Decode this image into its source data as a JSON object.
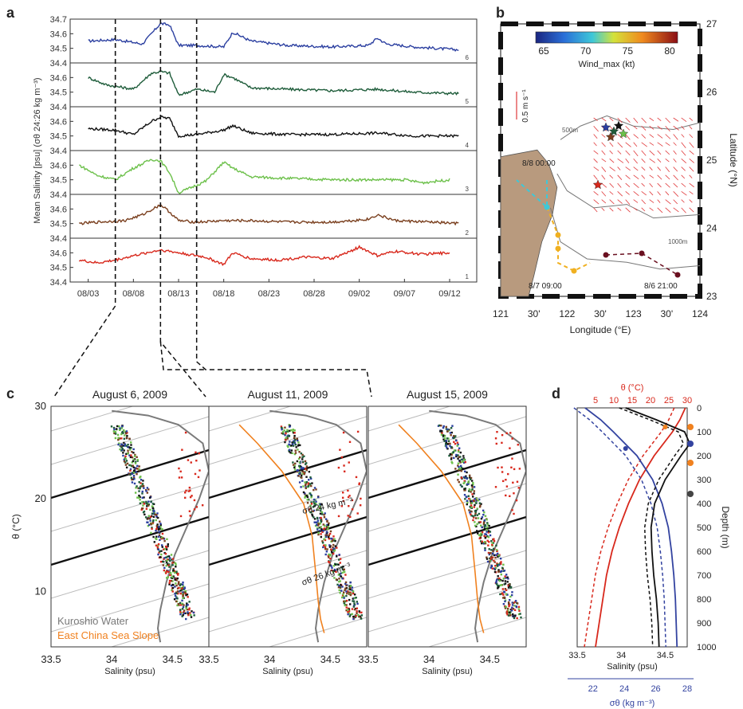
{
  "panel_letters": {
    "a": "a",
    "b": "b",
    "c": "c",
    "d": "d"
  },
  "chart_data": [
    {
      "panel": "a",
      "type": "line",
      "ylabel": "Mean Salinity [psu] (σθ 24:26 kg m⁻³)",
      "ylim": [
        34.4,
        34.7
      ],
      "y_ticks": [
        "34.4",
        "34.5",
        "34.6",
        "34.7"
      ],
      "x_ticks": [
        "08/03",
        "08/08",
        "08/13",
        "08/18",
        "08/23",
        "08/28",
        "09/02",
        "09/07",
        "09/12"
      ],
      "date_range": [
        "2009-08-01",
        "2009-09-15"
      ],
      "marked_dates": [
        "2009-08-06",
        "2009-08-11",
        "2009-08-15"
      ],
      "series": [
        {
          "name": "6",
          "color": "#2b3fa0",
          "x": [
            "08/03",
            "08/06",
            "08/09",
            "08/10",
            "08/11",
            "08/12",
            "08/13",
            "08/15",
            "08/18",
            "08/19",
            "08/21",
            "08/25",
            "08/30",
            "09/03",
            "09/04",
            "09/05",
            "09/08",
            "09/13"
          ],
          "values": [
            34.55,
            34.56,
            34.53,
            34.6,
            34.67,
            34.66,
            34.52,
            34.52,
            34.51,
            34.61,
            34.55,
            34.52,
            34.51,
            34.52,
            34.57,
            34.53,
            34.51,
            34.49
          ]
        },
        {
          "name": "5",
          "color": "#1e5c3a",
          "x": [
            "08/03",
            "08/05",
            "08/08",
            "08/10",
            "08/11",
            "08/12",
            "08/13",
            "08/15",
            "08/17",
            "08/18",
            "08/19",
            "08/21",
            "08/25",
            "08/30",
            "09/04",
            "09/08",
            "09/13"
          ],
          "values": [
            34.6,
            34.55,
            34.52,
            34.63,
            34.64,
            34.63,
            34.48,
            34.52,
            34.5,
            34.62,
            34.6,
            34.53,
            34.52,
            34.51,
            34.52,
            34.5,
            34.49
          ]
        },
        {
          "name": "4",
          "color": "#111111",
          "x": [
            "08/03",
            "08/06",
            "08/08",
            "08/10",
            "08/11",
            "08/12",
            "08/13",
            "08/15",
            "08/18",
            "08/19",
            "08/21",
            "08/25",
            "08/30",
            "09/04",
            "09/08",
            "09/13"
          ],
          "values": [
            34.55,
            34.54,
            34.51,
            34.6,
            34.63,
            34.62,
            34.5,
            34.51,
            34.54,
            34.57,
            34.52,
            34.51,
            34.51,
            34.52,
            34.5,
            34.5
          ]
        },
        {
          "name": "3",
          "color": "#6cc04a",
          "x": [
            "08/02",
            "08/04",
            "08/06",
            "08/08",
            "08/10",
            "08/11",
            "08/12",
            "08/13",
            "08/16",
            "08/18",
            "08/19",
            "08/21",
            "08/25",
            "08/30",
            "09/04",
            "09/07",
            "09/09",
            "09/12"
          ],
          "values": [
            34.6,
            34.53,
            34.5,
            34.58,
            34.64,
            34.63,
            34.55,
            34.41,
            34.49,
            34.62,
            34.58,
            34.52,
            34.51,
            34.5,
            34.5,
            34.5,
            34.48,
            34.5
          ]
        },
        {
          "name": "2",
          "color": "#7a3f1e",
          "x": [
            "08/02",
            "08/04",
            "08/07",
            "08/09",
            "08/11",
            "08/12",
            "08/13",
            "08/15",
            "08/18",
            "08/21",
            "08/25",
            "08/30",
            "09/03",
            "09/04",
            "09/06",
            "09/10",
            "09/13"
          ],
          "values": [
            34.5,
            34.51,
            34.52,
            34.56,
            34.63,
            34.58,
            34.52,
            34.51,
            34.52,
            34.52,
            34.51,
            34.51,
            34.53,
            34.56,
            34.52,
            34.51,
            34.5
          ]
        },
        {
          "name": "1",
          "color": "#d8281c",
          "x": [
            "08/02",
            "08/04",
            "08/06",
            "08/08",
            "08/11",
            "08/13",
            "08/16",
            "08/18",
            "08/19",
            "08/21",
            "08/24",
            "08/27",
            "08/30",
            "09/01",
            "09/02",
            "09/04",
            "09/06",
            "09/09",
            "09/12"
          ],
          "values": [
            34.55,
            34.53,
            34.55,
            34.58,
            34.62,
            34.6,
            34.57,
            34.52,
            34.6,
            34.56,
            34.55,
            34.57,
            34.56,
            34.61,
            34.64,
            34.58,
            34.61,
            34.59,
            34.6
          ]
        }
      ]
    },
    {
      "panel": "b",
      "type": "map",
      "xlabel": "Longitude (°E)",
      "ylabel": "Latitude (°N)",
      "x_ticks": [
        "121",
        "30'",
        "122",
        "30'",
        "123",
        "30'",
        "124"
      ],
      "y_ticks": [
        "23",
        "24",
        "25",
        "26",
        "27"
      ],
      "colorbar": {
        "label": "Wind_max (kt)",
        "ticks": [
          "65",
          "70",
          "75",
          "80"
        ]
      },
      "scale_label": "0.5 m s⁻¹",
      "isobath_labels": [
        "500m",
        "1000m"
      ],
      "track_labels": [
        "8/8 00:00",
        "8/7 09:00",
        "8/6 21:00"
      ]
    },
    {
      "panel": "c",
      "type": "scatter",
      "titles": [
        "August 6, 2009",
        "August 11, 2009",
        "August 15, 2009"
      ],
      "ylabel": "θ (°C)",
      "xlabel": "Salinity (psu)",
      "xlim": [
        33.5,
        34.8
      ],
      "ylim": [
        4,
        30
      ],
      "x_ticks": [
        "33.5",
        "34",
        "34.5"
      ],
      "y_ticks": [
        "10",
        "20",
        "30"
      ],
      "isopycnal_labels": [
        "σθ 24 kg m⁻³",
        "σθ 26 kg m⁻³"
      ],
      "legend": [
        "Kuroshio Water",
        "East China Sea Slope"
      ],
      "legend_colors": [
        "#7a7a7a",
        "#f0811f"
      ],
      "kuroshio_profile": {
        "salinity": [
          34.0,
          34.3,
          34.55,
          34.75,
          34.8,
          34.72,
          34.62,
          34.52,
          34.45,
          34.4,
          34.38,
          34.4
        ],
        "theta": [
          29.5,
          29.0,
          28.0,
          26.0,
          23.0,
          20.0,
          17.0,
          14.0,
          11.0,
          8.0,
          6.0,
          4.5
        ]
      },
      "ecs_profile": {
        "salinity": [
          33.75,
          33.9,
          34.1,
          34.28,
          34.35,
          34.38,
          34.4,
          34.42,
          34.45
        ],
        "theta": [
          28.0,
          26.0,
          23.0,
          19.5,
          16.0,
          12.0,
          9.0,
          7.0,
          5.5
        ]
      }
    },
    {
      "panel": "d",
      "type": "line",
      "ylabel": "Depth (m)",
      "xlabel": "Salinity (psu)",
      "top_axis_label": "θ (°C)",
      "bottom2_axis_label": "σθ (kg m⁻³)",
      "ylim": [
        1000,
        0
      ],
      "y_ticks": [
        "0",
        "100",
        "200",
        "300",
        "400",
        "500",
        "600",
        "700",
        "800",
        "900",
        "1000"
      ],
      "salinity_ticks": [
        "33.5",
        "34",
        "34.5"
      ],
      "theta_ticks": [
        "5",
        "10",
        "15",
        "20",
        "25",
        "30"
      ],
      "sigma_ticks": [
        "22",
        "24",
        "26",
        "28"
      ],
      "series": [
        {
          "name": "θ",
          "color": "#d8281c",
          "depth": [
            0,
            50,
            100,
            200,
            300,
            400,
            500,
            600,
            700,
            800,
            900,
            1000
          ],
          "values": [
            29.5,
            28,
            26,
            21,
            17,
            14,
            11.5,
            9.5,
            8,
            7,
            6,
            5
          ]
        },
        {
          "name": "σθ",
          "color": "#3343a0",
          "depth": [
            0,
            50,
            100,
            200,
            300,
            400,
            500,
            600,
            700,
            800,
            900,
            1000
          ],
          "values": [
            21.5,
            22.5,
            23.3,
            24.8,
            25.8,
            26.4,
            26.8,
            27.0,
            27.15,
            27.25,
            27.3,
            27.35
          ]
        },
        {
          "name": "S",
          "color": "#111111",
          "depth": [
            0,
            50,
            100,
            150,
            200,
            300,
            400,
            500,
            600,
            700,
            800,
            900,
            1000
          ],
          "values": [
            34.05,
            34.4,
            34.72,
            34.78,
            34.68,
            34.5,
            34.38,
            34.34,
            34.35,
            34.37,
            34.4,
            34.42,
            34.43
          ]
        }
      ]
    }
  ]
}
